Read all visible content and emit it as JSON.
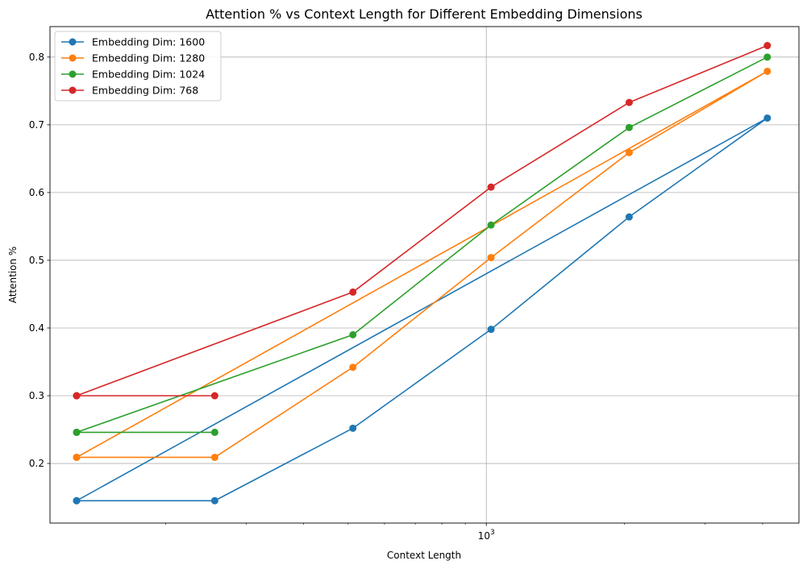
{
  "chart_data": {
    "type": "line",
    "title": "Attention % vs Context Length for Different Embedding Dimensions",
    "xlabel": "Context Length",
    "ylabel": "Attention %",
    "xscale": "log",
    "xlim": [
      112,
      4800
    ],
    "ylim": [
      0.112,
      0.845
    ],
    "x_major_ticks": [
      {
        "value": 1000,
        "label": "10^3"
      }
    ],
    "x_minor_ticks": [
      200,
      300,
      400,
      500,
      600,
      700,
      800,
      900,
      2000,
      3000,
      4000
    ],
    "y_ticks": [
      {
        "value": 0.2,
        "label": "0.2"
      },
      {
        "value": 0.3,
        "label": "0.3"
      },
      {
        "value": 0.4,
        "label": "0.4"
      },
      {
        "value": 0.5,
        "label": "0.5"
      },
      {
        "value": 0.6,
        "label": "0.6"
      },
      {
        "value": 0.7,
        "label": "0.7"
      },
      {
        "value": 0.8,
        "label": "0.8"
      }
    ],
    "grid": true,
    "legend_position": "top-left",
    "series": [
      {
        "name": "Embedding Dim: 1600",
        "color": "#1f77b4",
        "x": [
          128,
          256,
          512,
          1024,
          2048,
          4096,
          128
        ],
        "y": [
          0.145,
          0.145,
          0.252,
          0.398,
          0.564,
          0.71,
          0.145
        ]
      },
      {
        "name": "Embedding Dim: 1280",
        "color": "#ff7f0e",
        "x": [
          128,
          256,
          512,
          1024,
          2048,
          4096,
          128
        ],
        "y": [
          0.209,
          0.209,
          0.342,
          0.504,
          0.659,
          0.779,
          0.209
        ]
      },
      {
        "name": "Embedding Dim: 1024",
        "color": "#2ca02c",
        "x": [
          128,
          256,
          128,
          512,
          1024,
          2048,
          4096
        ],
        "y": [
          0.246,
          0.246,
          0.246,
          0.39,
          0.552,
          0.696,
          0.8
        ]
      },
      {
        "name": "Embedding Dim: 768",
        "color": "#d62728",
        "x": [
          128,
          256,
          128,
          512,
          1024,
          2048,
          4096
        ],
        "y": [
          0.3,
          0.3,
          0.3,
          0.453,
          0.608,
          0.733,
          0.817
        ]
      }
    ]
  }
}
